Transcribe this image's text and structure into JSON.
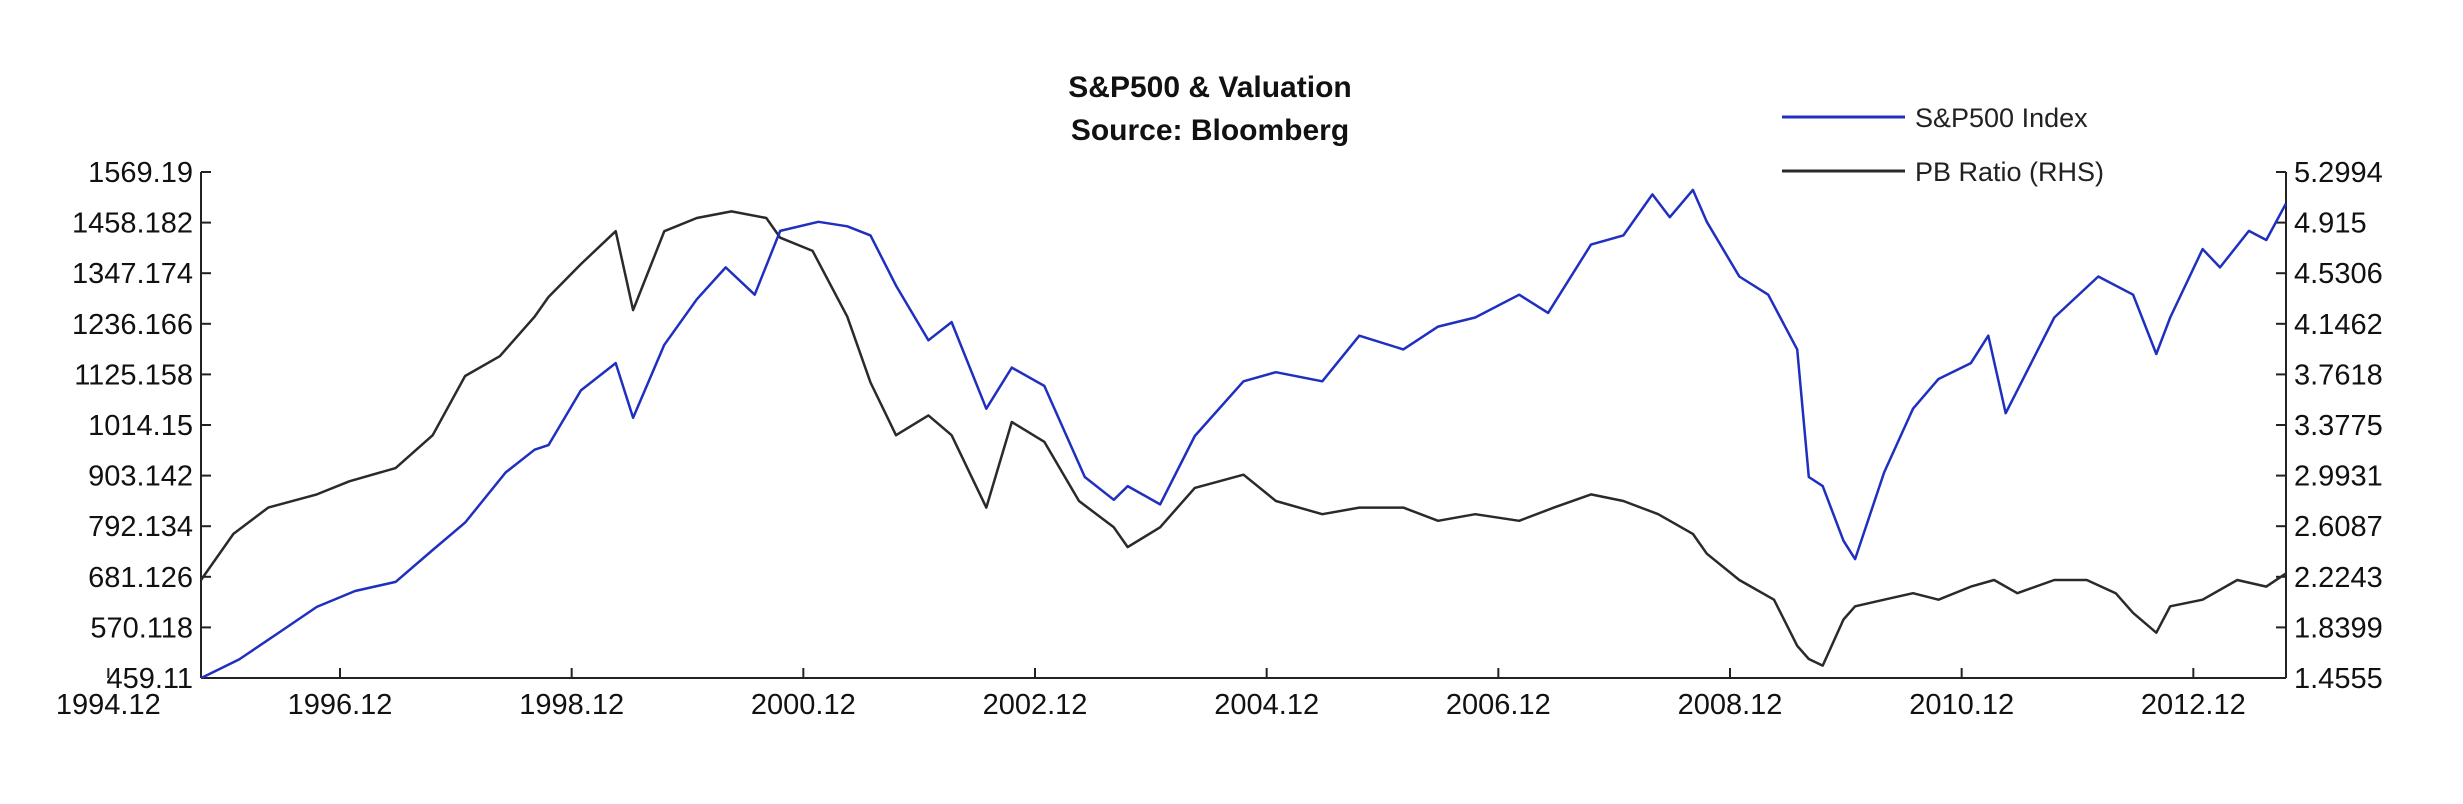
{
  "chart_data": {
    "type": "line",
    "title": "S&P500 & Valuation",
    "subtitle": "Source: Bloomberg",
    "x_ticks": [
      "1994.12",
      "1996.12",
      "1998.12",
      "2000.12",
      "2002.12",
      "2004.12",
      "2006.12",
      "2008.12",
      "2010.12",
      "2012.12"
    ],
    "xlim": [
      1994.92,
      2012.92
    ],
    "y_left_ticks": [
      "459.11",
      "570.118",
      "681.126",
      "792.134",
      "903.142",
      "1014.15",
      "1125.158",
      "1236.166",
      "1347.174",
      "1458.182",
      "1569.19"
    ],
    "ylim_left": [
      459.11,
      1569.19
    ],
    "y_right_ticks": [
      "1.4555",
      "1.8399",
      "2.2243",
      "2.6087",
      "2.9931",
      "3.3775",
      "3.7618",
      "4.1462",
      "4.5306",
      "4.915",
      "5.2994"
    ],
    "ylim_right": [
      1.4555,
      5.2994
    ],
    "grid": false,
    "legend_position": "top-right",
    "series": [
      {
        "name": "S&P500 Index",
        "axis": "left",
        "color": "#1f2fbf",
        "x": [
          1994.92,
          1995.25,
          1995.6,
          1995.92,
          1996.25,
          1996.6,
          1996.92,
          1997.2,
          1997.55,
          1997.8,
          1997.92,
          1998.2,
          1998.5,
          1998.65,
          1998.92,
          1999.2,
          1999.45,
          1999.7,
          1999.92,
          2000.25,
          2000.5,
          2000.7,
          2000.92,
          2001.2,
          2001.4,
          2001.7,
          2001.92,
          2002.2,
          2002.55,
          2002.8,
          2002.92,
          2003.2,
          2003.5,
          2003.92,
          2004.2,
          2004.6,
          2004.92,
          2005.3,
          2005.6,
          2005.92,
          2006.3,
          2006.55,
          2006.92,
          2007.2,
          2007.45,
          2007.6,
          2007.8,
          2007.92,
          2008.2,
          2008.45,
          2008.7,
          2008.8,
          2008.92,
          2009.1,
          2009.2,
          2009.45,
          2009.7,
          2009.92,
          2010.2,
          2010.35,
          2010.5,
          2010.92,
          2011.3,
          2011.6,
          2011.8,
          2011.92,
          2012.2,
          2012.35,
          2012.6,
          2012.75,
          2012.92
        ],
        "values": [
          459,
          500,
          560,
          615,
          650,
          670,
          740,
          800,
          910,
          960,
          970,
          1090,
          1150,
          1030,
          1190,
          1290,
          1360,
          1300,
          1440,
          1460,
          1450,
          1430,
          1320,
          1200,
          1240,
          1050,
          1140,
          1100,
          900,
          850,
          880,
          840,
          990,
          1110,
          1130,
          1110,
          1210,
          1180,
          1230,
          1250,
          1300,
          1260,
          1410,
          1430,
          1520,
          1470,
          1530,
          1460,
          1340,
          1300,
          1180,
          900,
          880,
          760,
          720,
          910,
          1050,
          1115,
          1150,
          1210,
          1040,
          1250,
          1340,
          1300,
          1170,
          1250,
          1400,
          1360,
          1440,
          1420,
          1500
        ]
      },
      {
        "name": "PB Ratio (RHS)",
        "axis": "right",
        "color": "#2a2a2a",
        "x": [
          1994.92,
          1995.2,
          1995.5,
          1995.92,
          1996.2,
          1996.6,
          1996.92,
          1997.2,
          1997.5,
          1997.8,
          1997.92,
          1998.2,
          1998.5,
          1998.65,
          1998.92,
          1999.2,
          1999.5,
          1999.8,
          1999.92,
          2000.2,
          2000.5,
          2000.7,
          2000.92,
          2001.2,
          2001.4,
          2001.7,
          2001.92,
          2002.2,
          2002.5,
          2002.8,
          2002.92,
          2003.2,
          2003.5,
          2003.92,
          2004.2,
          2004.6,
          2004.92,
          2005.3,
          2005.6,
          2005.92,
          2006.3,
          2006.6,
          2006.92,
          2007.2,
          2007.5,
          2007.8,
          2007.92,
          2008.2,
          2008.5,
          2008.7,
          2008.8,
          2008.92,
          2009.1,
          2009.2,
          2009.45,
          2009.7,
          2009.92,
          2010.2,
          2010.4,
          2010.6,
          2010.92,
          2011.2,
          2011.45,
          2011.6,
          2011.8,
          2011.92,
          2012.2,
          2012.5,
          2012.75,
          2012.92
        ],
        "values": [
          2.2,
          2.55,
          2.75,
          2.85,
          2.95,
          3.05,
          3.3,
          3.75,
          3.9,
          4.2,
          4.35,
          4.6,
          4.85,
          4.25,
          4.85,
          4.95,
          5.0,
          4.95,
          4.8,
          4.7,
          4.2,
          3.7,
          3.3,
          3.45,
          3.3,
          2.75,
          3.4,
          3.25,
          2.8,
          2.6,
          2.45,
          2.6,
          2.9,
          3.0,
          2.8,
          2.7,
          2.75,
          2.75,
          2.65,
          2.7,
          2.65,
          2.75,
          2.85,
          2.8,
          2.7,
          2.55,
          2.4,
          2.2,
          2.05,
          1.7,
          1.6,
          1.55,
          1.9,
          2.0,
          2.05,
          2.1,
          2.05,
          2.15,
          2.2,
          2.1,
          2.2,
          2.2,
          2.1,
          1.95,
          1.8,
          2.0,
          2.05,
          2.2,
          2.15,
          2.25
        ]
      }
    ]
  }
}
